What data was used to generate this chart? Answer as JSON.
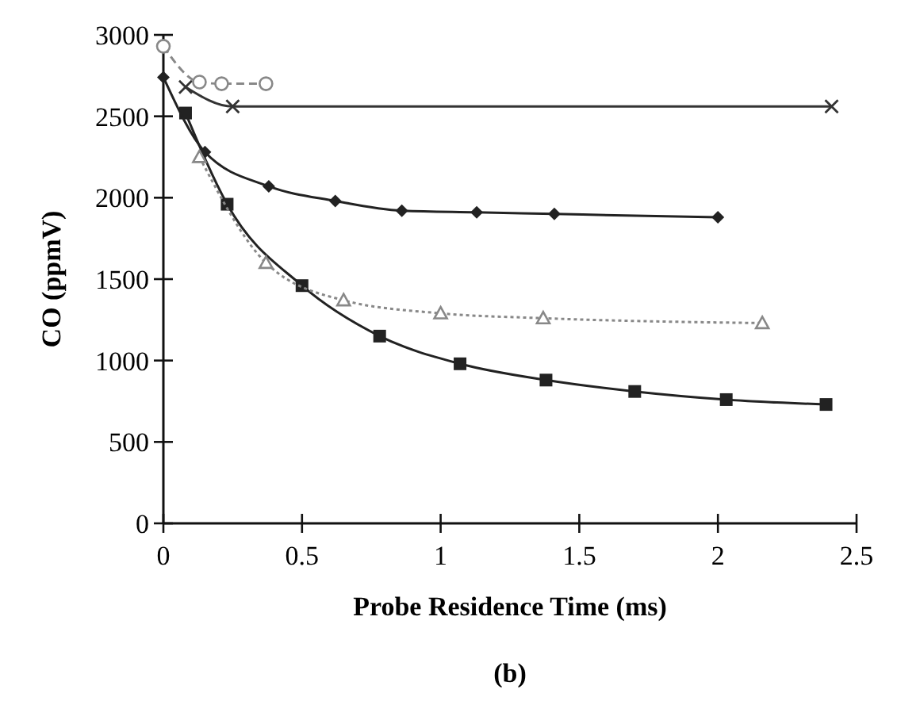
{
  "chart_data": {
    "type": "line",
    "xlabel": "Probe Residence Time (ms)",
    "ylabel": "CO (ppmV)",
    "annotations": [
      "(b)"
    ],
    "xlim": [
      0,
      2.5
    ],
    "xticks": [
      0,
      0.5,
      1,
      1.5,
      2,
      2.5
    ],
    "ylim": [
      0,
      3000
    ],
    "yticks": [
      0,
      500,
      1000,
      1500,
      2000,
      2500,
      3000
    ],
    "grid": false,
    "series": [
      {
        "color": "#222222",
        "marker": "square",
        "line_style": "solid",
        "x": [
          0.08,
          0.23,
          0.5,
          0.78,
          1.07,
          1.38,
          1.7,
          2.03,
          2.39
        ],
        "values": [
          2520,
          1960,
          1460,
          1150,
          980,
          880,
          810,
          760,
          730
        ]
      },
      {
        "color": "#222222",
        "marker": "diamond",
        "line_style": "solid",
        "x": [
          0,
          0.15,
          0.38,
          0.62,
          0.86,
          1.13,
          1.41,
          2.0
        ],
        "values": [
          2740,
          2280,
          2070,
          1980,
          1920,
          1910,
          1900,
          1880
        ]
      },
      {
        "color": "#888888",
        "marker": "triangle",
        "line_style": "dotted",
        "x": [
          0.13,
          0.37,
          0.65,
          1.0,
          1.37,
          2.16
        ],
        "values": [
          2250,
          1600,
          1370,
          1290,
          1260,
          1230
        ]
      },
      {
        "color": "#333333",
        "marker": "cross",
        "line_style": "solid",
        "x": [
          0.08,
          0.25,
          2.41
        ],
        "values": [
          2680,
          2560,
          2560
        ]
      },
      {
        "color": "#888888",
        "marker": "circle",
        "line_style": "dashed",
        "x": [
          0,
          0.13,
          0.21,
          0.37
        ],
        "values": [
          2930,
          2710,
          2700,
          2700
        ]
      }
    ]
  }
}
